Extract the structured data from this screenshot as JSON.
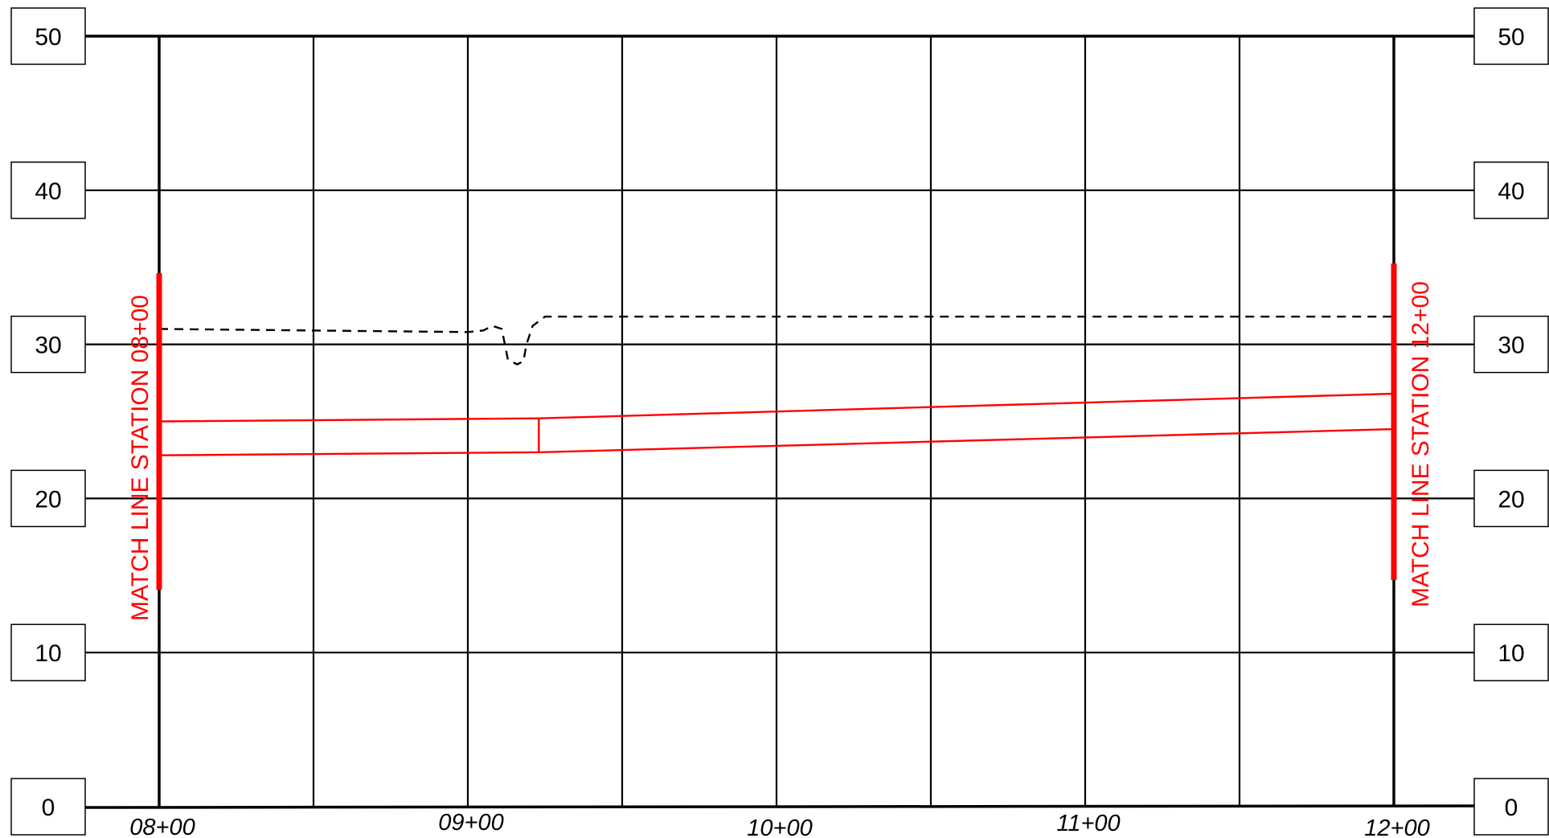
{
  "profile": {
    "elevation_labels": [
      "50",
      "40",
      "30",
      "20",
      "10",
      "0"
    ],
    "elevation_values": [
      50,
      40,
      30,
      20,
      10,
      0
    ],
    "station_labels": [
      "08+00",
      "09+00",
      "10+00",
      "11+00",
      "12+00"
    ],
    "station_values": [
      800,
      900,
      1000,
      1100,
      1200
    ],
    "elevation_range": [
      0,
      50
    ],
    "station_range": [
      800,
      1200
    ],
    "grid_interval_stations": 50,
    "grid_interval_elevation": 10,
    "match_lines": {
      "left": "MATCH LINE STATION 08+00",
      "right": "MATCH LINE STATION 12+00"
    },
    "colors": {
      "grid": "#000000",
      "design": "#ff0000",
      "existing_ground": "#000000"
    },
    "existing_ground": {
      "style": "dashed",
      "points": [
        [
          800,
          31.0
        ],
        [
          900,
          30.8
        ],
        [
          905,
          30.9
        ],
        [
          908,
          31.2
        ],
        [
          911,
          31.0
        ],
        [
          912,
          30.0
        ],
        [
          913,
          29.0
        ],
        [
          916,
          28.7
        ],
        [
          918,
          28.9
        ],
        [
          919,
          30.0
        ],
        [
          921,
          31.2
        ],
        [
          925,
          31.8
        ],
        [
          1200,
          31.8
        ]
      ]
    },
    "design_profile": {
      "upper": [
        [
          800,
          25.0
        ],
        [
          923,
          25.2
        ],
        [
          1200,
          26.8
        ]
      ],
      "lower": [
        [
          800,
          22.8
        ],
        [
          923,
          23.0
        ],
        [
          1200,
          24.5
        ]
      ],
      "break_station": 923
    }
  }
}
